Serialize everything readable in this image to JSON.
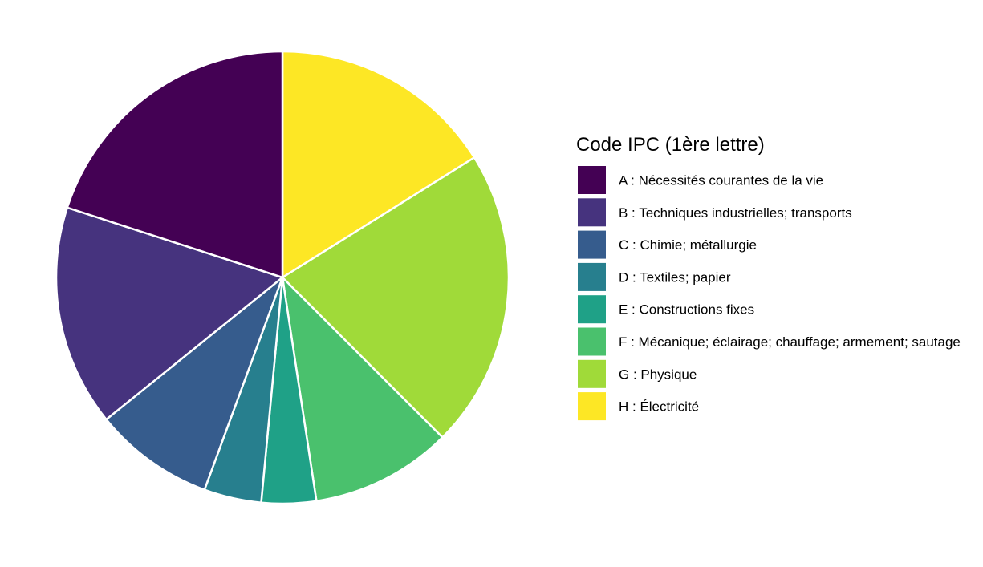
{
  "chart_data": {
    "type": "pie",
    "title": "",
    "legend": {
      "title": "Code IPC (1ère lettre)",
      "position": "right"
    },
    "slices": [
      {
        "label": "A : Nécessités courantes de la vie",
        "value": 20.0,
        "color": "#440154"
      },
      {
        "label": "B : Techniques industrielles; transports",
        "value": 15.8,
        "color": "#46337E"
      },
      {
        "label": "C : Chimie; métallurgie",
        "value": 8.6,
        "color": "#365C8D"
      },
      {
        "label": "D : Textiles; papier",
        "value": 4.1,
        "color": "#277F8E"
      },
      {
        "label": "E : Constructions fixes",
        "value": 3.9,
        "color": "#1FA187"
      },
      {
        "label": "F : Mécanique; éclairage; chauffage; armement; sautage",
        "value": 10.1,
        "color": "#4AC16D"
      },
      {
        "label": "G : Physique",
        "value": 21.4,
        "color": "#A0DA39"
      },
      {
        "label": "H : Électricité",
        "value": 16.1,
        "color": "#FDE725"
      }
    ],
    "start_angle": "12 o'clock",
    "direction": "clockwise",
    "slice_border_color": "#ffffff"
  }
}
